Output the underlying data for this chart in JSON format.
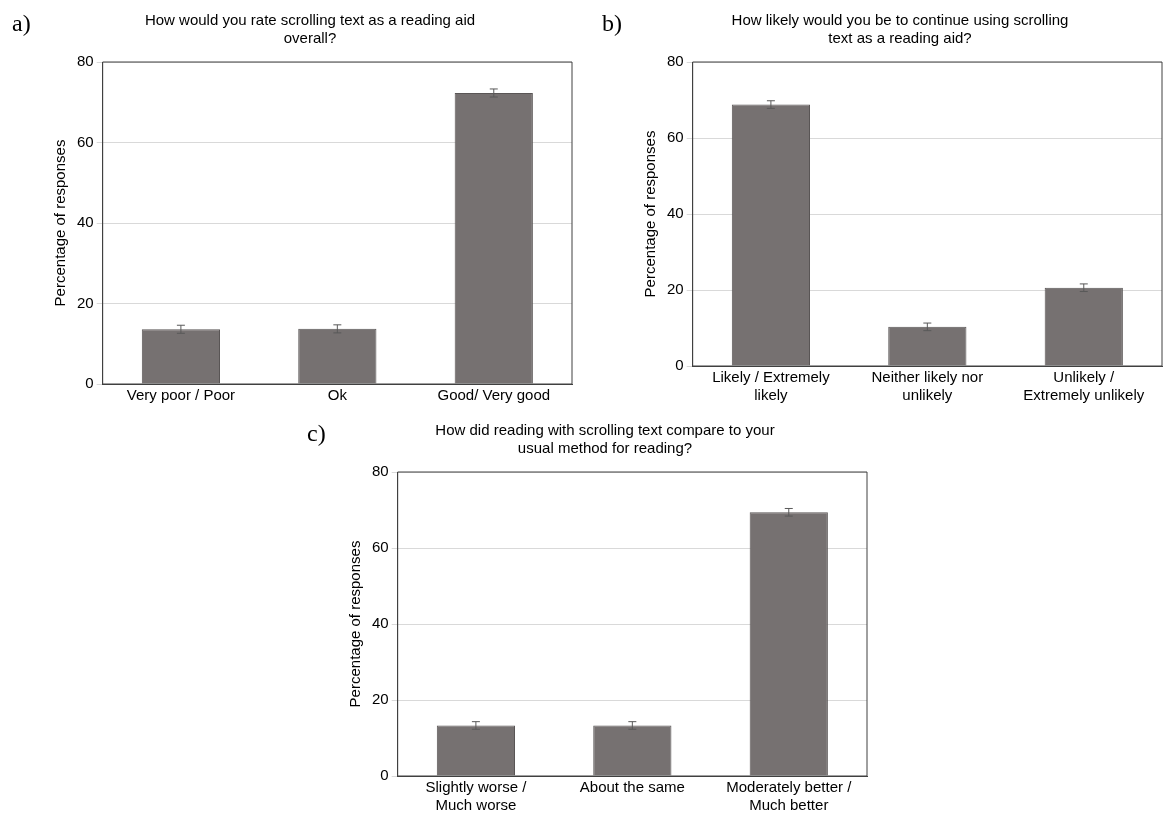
{
  "chart_data": [
    {
      "type": "bar",
      "title": "How would you rate scrolling text as a reading aid overall?",
      "ylabel": "Percentage of responses",
      "annotations": [
        "a)"
      ],
      "categories": [
        "Very poor / Poor",
        "Ok",
        "Good/ Very good"
      ],
      "values": [
        13.6,
        13.7,
        72.3
      ],
      "errors": [
        1,
        1,
        1
      ],
      "color": "#767171",
      "ylim": [
        0,
        80
      ],
      "yticks": [
        0,
        20,
        40,
        60,
        80
      ],
      "grid": "y"
    },
    {
      "type": "bar",
      "title": "How likely would you be to continue using scrolling text as a reading aid?",
      "ylabel": "Percentage of responses",
      "annotations": [
        "b)"
      ],
      "categories": [
        "Likely / Extremely likely",
        "Neither likely nor unlikely",
        "Unlikely / Extremely unlikely"
      ],
      "values": [
        68.8,
        10.3,
        20.6
      ],
      "errors": [
        1,
        1,
        1
      ],
      "color": "#767171",
      "ylim": [
        0,
        80
      ],
      "yticks": [
        0,
        20,
        40,
        60,
        80
      ],
      "grid": "y"
    },
    {
      "type": "bar",
      "title": "How did reading with scrolling text compare to your usual method for reading?",
      "ylabel": "Percentage of responses",
      "annotations": [
        "c)"
      ],
      "categories": [
        "Slightly worse / Much worse",
        "About the same",
        "Moderately better / Much better"
      ],
      "values": [
        13.3,
        13.3,
        69.4
      ],
      "errors": [
        1,
        1,
        1
      ],
      "color": "#767171",
      "ylim": [
        0,
        80
      ],
      "yticks": [
        0,
        20,
        40,
        60,
        80
      ],
      "grid": "y"
    }
  ]
}
